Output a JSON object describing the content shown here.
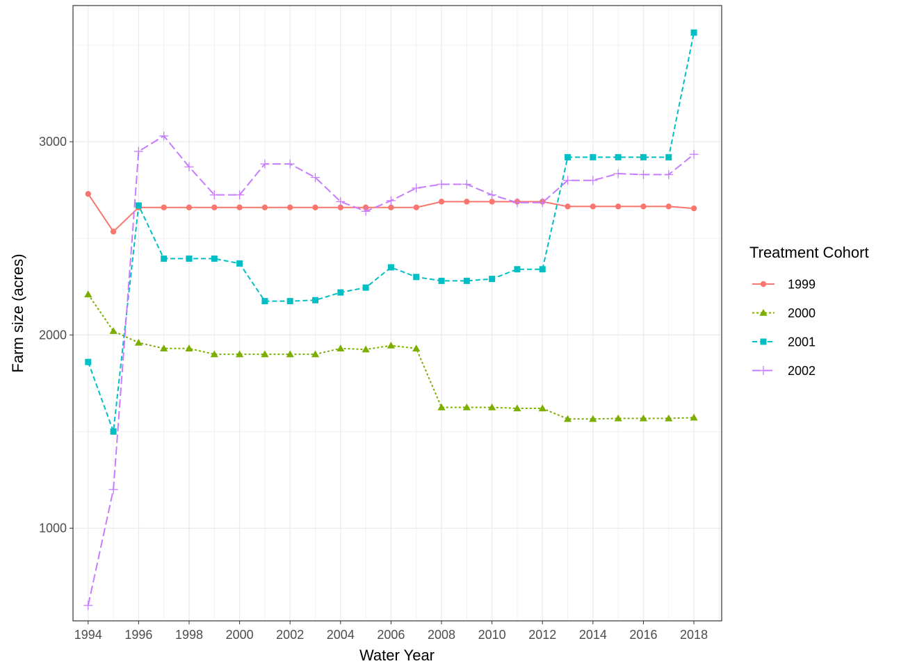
{
  "chart_data": {
    "type": "line",
    "xlabel": "Water Year",
    "ylabel": "Farm size (acres)",
    "xlim": [
      1993.4,
      2019.1
    ],
    "ylim": [
      520,
      3705
    ],
    "x_ticks": [
      1994,
      1996,
      1998,
      2000,
      2002,
      2004,
      2006,
      2008,
      2010,
      2012,
      2014,
      2016,
      2018
    ],
    "y_ticks": [
      1000,
      2000,
      3000
    ],
    "grid": true,
    "legend": {
      "title": "Treatment Cohort",
      "placement": "right"
    },
    "x": [
      1994,
      1995,
      1996,
      1997,
      1998,
      1999,
      2000,
      2001,
      2002,
      2003,
      2004,
      2005,
      2006,
      2007,
      2008,
      2009,
      2010,
      2011,
      2012,
      2013,
      2014,
      2015,
      2016,
      2017,
      2018
    ],
    "series": [
      {
        "name": "1999",
        "color": "#F8766D",
        "marker": "circle",
        "dash": "solid",
        "values": [
          2730,
          2535,
          2660,
          2660,
          2660,
          2660,
          2660,
          2660,
          2660,
          2660,
          2660,
          2660,
          2660,
          2660,
          2690,
          2690,
          2690,
          2690,
          2690,
          2665,
          2665,
          2665,
          2665,
          2665,
          2655
        ]
      },
      {
        "name": "2000",
        "color": "#7CAE00",
        "marker": "triangle",
        "dash": "dotted",
        "values": [
          2210,
          2020,
          1960,
          1930,
          1930,
          1900,
          1900,
          1900,
          1900,
          1900,
          1930,
          1925,
          1945,
          1930,
          1625,
          1625,
          1625,
          1620,
          1620,
          1565,
          1565,
          1568,
          1568,
          1568,
          1572
        ]
      },
      {
        "name": "2001",
        "color": "#00BFC4",
        "marker": "square",
        "dash": "dashed",
        "values": [
          1860,
          1500,
          2670,
          2395,
          2395,
          2395,
          2370,
          2175,
          2175,
          2180,
          2220,
          2245,
          2350,
          2300,
          2280,
          2280,
          2290,
          2340,
          2340,
          2920,
          2920,
          2920,
          2920,
          2920,
          3565
        ]
      },
      {
        "name": "2002",
        "color": "#C77CFF",
        "marker": "plus",
        "dash": "longdash",
        "values": [
          600,
          1200,
          2950,
          3030,
          2870,
          2725,
          2725,
          2885,
          2885,
          2815,
          2690,
          2640,
          2695,
          2760,
          2780,
          2780,
          2725,
          2685,
          2685,
          2800,
          2800,
          2835,
          2830,
          2830,
          2935
        ]
      }
    ]
  }
}
